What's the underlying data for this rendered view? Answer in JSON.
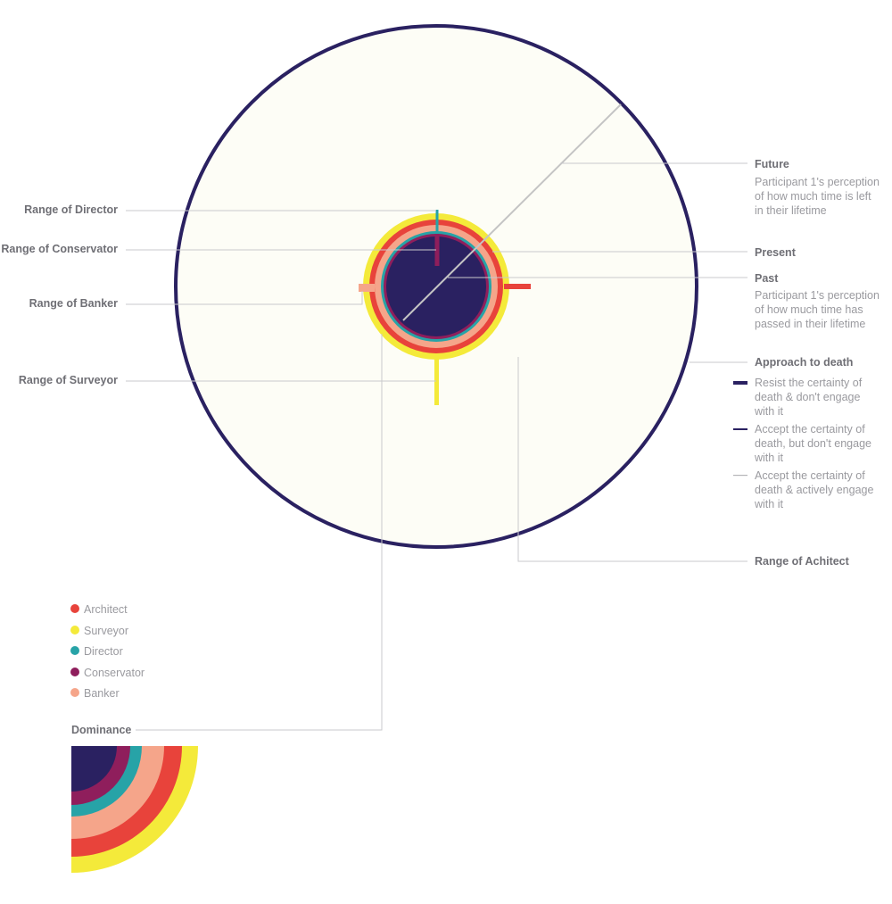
{
  "colors": {
    "background": "#ffffff",
    "disc_fill": "#fdfdf6",
    "navy": "#2a2161",
    "architect": "#e8433b",
    "surveyor": "#f4ea3a",
    "director": "#27a3a7",
    "conservator": "#8f1e5c",
    "banker": "#f5a58a",
    "time_line": "#c4c4c4",
    "leader_line": "#c9c9cc"
  },
  "left_labels": {
    "director": "Range of Director",
    "conservator": "Range of Conservator",
    "banker": "Range of Banker",
    "surveyor": "Range of Surveyor"
  },
  "right_labels": {
    "future_title": "Future",
    "future_desc": [
      "Participant 1's perception",
      "of how much time is left",
      "in their lifetime"
    ],
    "present_title": "Present",
    "past_title": "Past",
    "past_desc": [
      "Participant 1's perception",
      "of how much time has",
      "passed in their lifetime"
    ],
    "approach_title": "Approach to death",
    "approach_items": [
      {
        "style": "thick",
        "lines": [
          "Resist the certainty of",
          "death & don't engage",
          "with it"
        ]
      },
      {
        "style": "medium",
        "lines": [
          "Accept the certainty of",
          "death, but don't engage",
          "with it"
        ]
      },
      {
        "style": "thin",
        "lines": [
          "Accept the certainty of",
          "death & actively engage",
          "with it"
        ]
      }
    ],
    "architect": "Range of Achitect"
  },
  "legend": {
    "items": [
      {
        "key": "architect",
        "label": "Architect"
      },
      {
        "key": "surveyor",
        "label": "Surveyor"
      },
      {
        "key": "director",
        "label": "Director"
      },
      {
        "key": "conservator",
        "label": "Conservator"
      },
      {
        "key": "banker",
        "label": "Banker"
      }
    ]
  },
  "dominance": {
    "label": "Dominance",
    "rings_outer_to_inner": [
      "surveyor",
      "architect",
      "banker",
      "director",
      "conservator",
      "navy"
    ]
  }
}
